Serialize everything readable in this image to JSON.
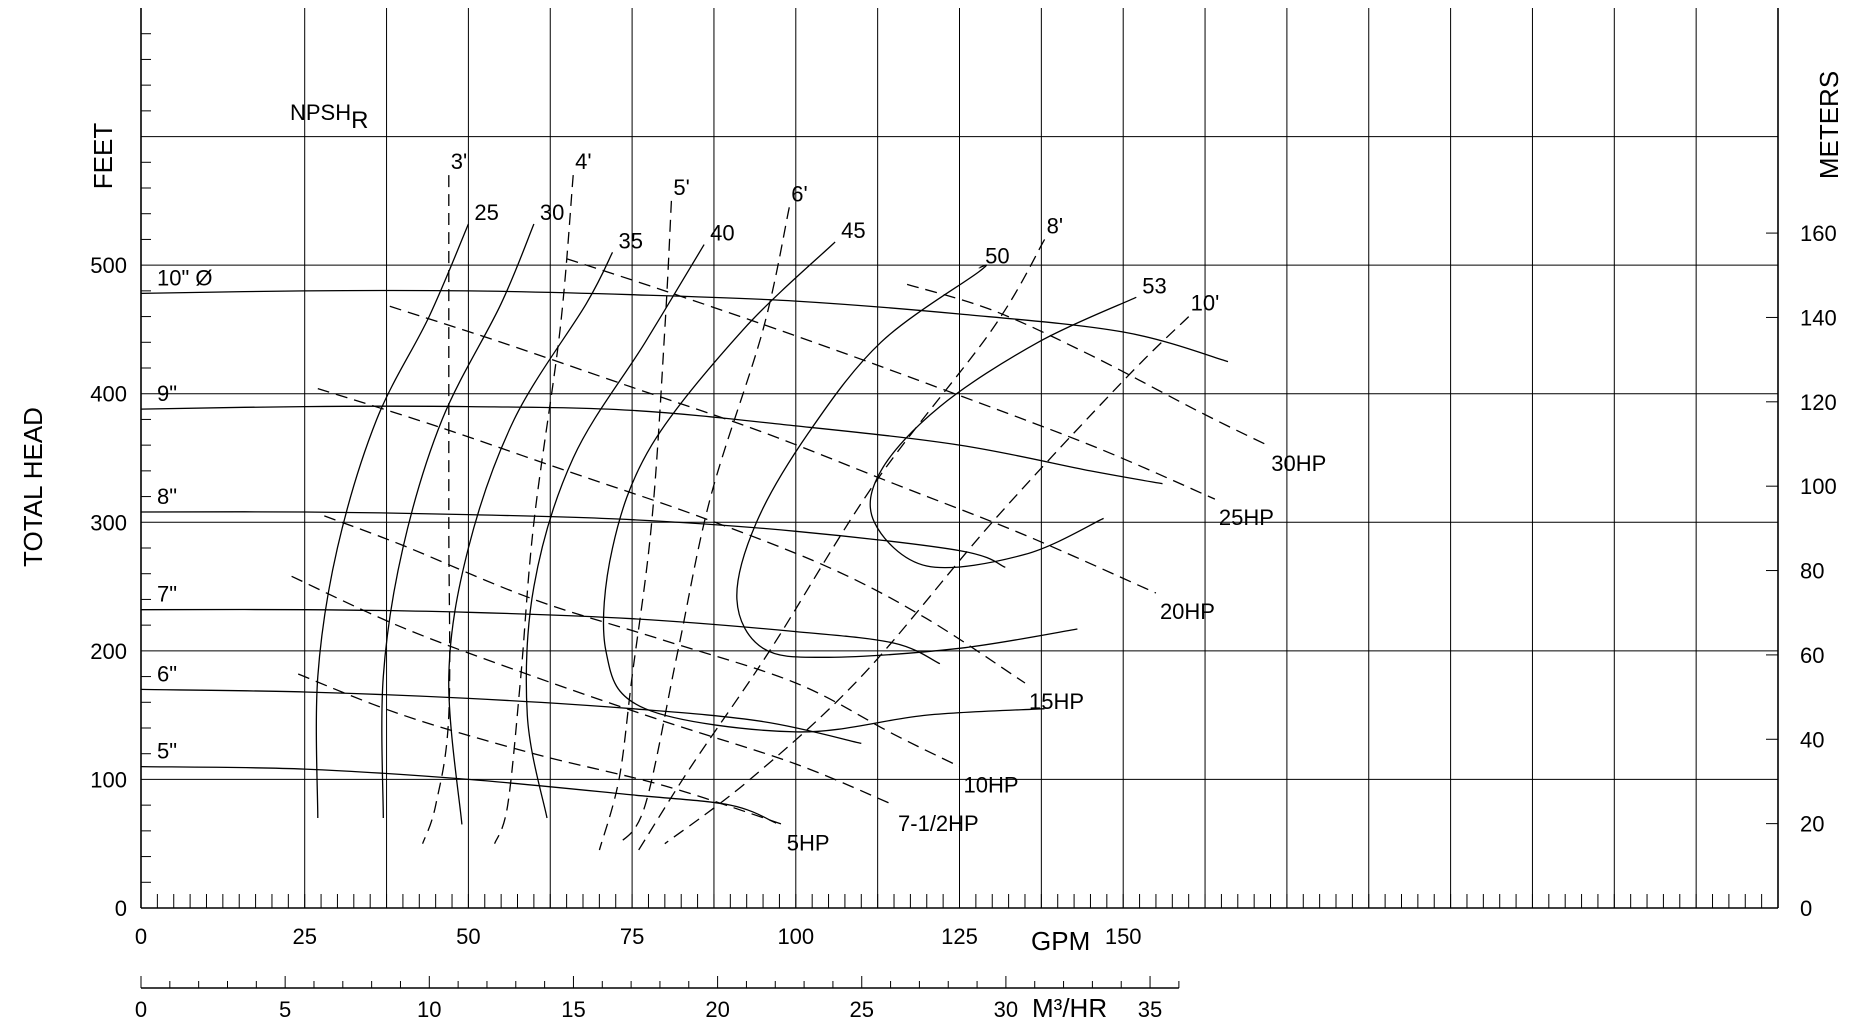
{
  "chart_data": {
    "type": "line",
    "title": "",
    "x": {
      "label": "GPM",
      "range": [
        0,
        250
      ],
      "ticks": [
        0,
        25,
        50,
        75,
        100,
        125,
        150
      ]
    },
    "x_metric": {
      "label": "M³/HR",
      "range": [
        0,
        36
      ],
      "ticks": [
        0,
        5,
        10,
        15,
        20,
        25,
        30,
        35
      ]
    },
    "y": {
      "label": "TOTAL HEAD",
      "unit_label": "FEET",
      "range": [
        0,
        700
      ],
      "ticks": [
        0,
        100,
        200,
        300,
        400,
        500
      ]
    },
    "y_metric": {
      "label": "METERS",
      "ticks": [
        0,
        20,
        40,
        60,
        80,
        100,
        120,
        140,
        160
      ]
    },
    "npsh_label": "NPSH",
    "npsh_sub": "R",
    "grid": true,
    "impeller_curves": [
      {
        "label": "10\" Ø",
        "points": [
          [
            0,
            478
          ],
          [
            25,
            480
          ],
          [
            50,
            480
          ],
          [
            75,
            477
          ],
          [
            100,
            472
          ],
          [
            125,
            462
          ],
          [
            150,
            448
          ],
          [
            166,
            425
          ]
        ]
      },
      {
        "label": "9\"",
        "points": [
          [
            0,
            388
          ],
          [
            25,
            390
          ],
          [
            50,
            390
          ],
          [
            75,
            387
          ],
          [
            100,
            375
          ],
          [
            125,
            360
          ],
          [
            145,
            340
          ],
          [
            156,
            330
          ]
        ]
      },
      {
        "label": "8\"",
        "points": [
          [
            0,
            308
          ],
          [
            25,
            308
          ],
          [
            50,
            306
          ],
          [
            75,
            302
          ],
          [
            100,
            293
          ],
          [
            125,
            278
          ],
          [
            132,
            265
          ]
        ]
      },
      {
        "label": "7\"",
        "points": [
          [
            0,
            232
          ],
          [
            25,
            232
          ],
          [
            50,
            230
          ],
          [
            75,
            225
          ],
          [
            100,
            215
          ],
          [
            115,
            206
          ],
          [
            122,
            190
          ]
        ]
      },
      {
        "label": "6\"",
        "points": [
          [
            0,
            170
          ],
          [
            25,
            168
          ],
          [
            50,
            163
          ],
          [
            75,
            155
          ],
          [
            95,
            145
          ],
          [
            110,
            128
          ]
        ]
      },
      {
        "label": "5\"",
        "points": [
          [
            0,
            110
          ],
          [
            25,
            108
          ],
          [
            50,
            100
          ],
          [
            75,
            88
          ],
          [
            90,
            80
          ],
          [
            97,
            66
          ]
        ]
      }
    ],
    "efficiency_curves": [
      {
        "label": "25",
        "points": [
          [
            27,
            70
          ],
          [
            27,
            180
          ],
          [
            30,
            280
          ],
          [
            36,
            380
          ],
          [
            44,
            460
          ],
          [
            50,
            532
          ]
        ]
      },
      {
        "label": "30",
        "points": [
          [
            37,
            70
          ],
          [
            37,
            180
          ],
          [
            40,
            280
          ],
          [
            46,
            380
          ],
          [
            55,
            470
          ],
          [
            60,
            532
          ]
        ]
      },
      {
        "label": "35",
        "points": [
          [
            49,
            65
          ],
          [
            47,
            180
          ],
          [
            50,
            280
          ],
          [
            57,
            380
          ],
          [
            68,
            470
          ],
          [
            72,
            510
          ]
        ]
      },
      {
        "label": "40",
        "points": [
          [
            62,
            70
          ],
          [
            59,
            150
          ],
          [
            60,
            250
          ],
          [
            66,
            350
          ],
          [
            77,
            440
          ],
          [
            86,
            516
          ]
        ]
      },
      {
        "label": "45",
        "points": [
          [
            138,
            155
          ],
          [
            120,
            150
          ],
          [
            100,
            137
          ],
          [
            77,
            155
          ],
          [
            71,
            200
          ],
          [
            72,
            280
          ],
          [
            78,
            360
          ],
          [
            92,
            450
          ],
          [
            106,
            518
          ]
        ]
      },
      {
        "label": "50",
        "points": [
          [
            143,
            217
          ],
          [
            125,
            202
          ],
          [
            105,
            195
          ],
          [
            95,
            202
          ],
          [
            91,
            240
          ],
          [
            94,
            300
          ],
          [
            102,
            370
          ],
          [
            113,
            440
          ],
          [
            128,
            495
          ],
          [
            128,
            498
          ]
        ]
      },
      {
        "label": "53",
        "points": [
          [
            147,
            303
          ],
          [
            135,
            275
          ],
          [
            120,
            266
          ],
          [
            112,
            300
          ],
          [
            113,
            340
          ],
          [
            122,
            390
          ],
          [
            137,
            440
          ],
          [
            152,
            475
          ]
        ]
      }
    ],
    "horsepower_curves": [
      {
        "label": "5HP",
        "points": [
          [
            24,
            182
          ],
          [
            40,
            150
          ],
          [
            60,
            120
          ],
          [
            80,
            95
          ],
          [
            98,
            65
          ]
        ]
      },
      {
        "label": "7-1/2HP",
        "points": [
          [
            23,
            258
          ],
          [
            40,
            218
          ],
          [
            60,
            180
          ],
          [
            80,
            145
          ],
          [
            100,
            112
          ],
          [
            115,
            80
          ]
        ]
      },
      {
        "label": "10HP",
        "points": [
          [
            28,
            305
          ],
          [
            40,
            282
          ],
          [
            60,
            240
          ],
          [
            80,
            208
          ],
          [
            100,
            175
          ],
          [
            115,
            135
          ],
          [
            125,
            110
          ]
        ]
      },
      {
        "label": "15HP",
        "points": [
          [
            27,
            404
          ],
          [
            45,
            375
          ],
          [
            65,
            340
          ],
          [
            85,
            305
          ],
          [
            105,
            265
          ],
          [
            120,
            225
          ],
          [
            135,
            175
          ]
        ]
      },
      {
        "label": "20HP",
        "points": [
          [
            38,
            468
          ],
          [
            55,
            440
          ],
          [
            75,
            405
          ],
          [
            95,
            370
          ],
          [
            115,
            330
          ],
          [
            135,
            290
          ],
          [
            155,
            245
          ]
        ]
      },
      {
        "label": "25HP",
        "points": [
          [
            65,
            505
          ],
          [
            80,
            480
          ],
          [
            100,
            445
          ],
          [
            120,
            408
          ],
          [
            145,
            360
          ],
          [
            164,
            318
          ]
        ]
      },
      {
        "label": "30HP",
        "points": [
          [
            117,
            485
          ],
          [
            130,
            465
          ],
          [
            145,
            430
          ],
          [
            162,
            385
          ],
          [
            172,
            360
          ]
        ]
      }
    ],
    "npsh_curves": [
      {
        "label": "3'",
        "points": [
          [
            47,
            570
          ],
          [
            47,
            450
          ],
          [
            47,
            300
          ],
          [
            47,
            150
          ],
          [
            45,
            80
          ],
          [
            43,
            50
          ]
        ]
      },
      {
        "label": "4'",
        "points": [
          [
            66,
            570
          ],
          [
            64,
            450
          ],
          [
            60,
            300
          ],
          [
            58,
            180
          ],
          [
            56,
            80
          ],
          [
            54,
            50
          ]
        ]
      },
      {
        "label": "5'",
        "points": [
          [
            81,
            550
          ],
          [
            80,
            450
          ],
          [
            78,
            300
          ],
          [
            75,
            180
          ],
          [
            73,
            100
          ],
          [
            70,
            45
          ]
        ]
      },
      {
        "label": "6'",
        "points": [
          [
            99,
            545
          ],
          [
            95,
            450
          ],
          [
            87,
            320
          ],
          [
            82,
            200
          ],
          [
            77,
            80
          ],
          [
            73,
            50
          ]
        ]
      },
      {
        "label": "8'",
        "points": [
          [
            138,
            520
          ],
          [
            130,
            450
          ],
          [
            112,
            330
          ],
          [
            96,
            200
          ],
          [
            84,
            110
          ],
          [
            76,
            45
          ]
        ]
      },
      {
        "label": "10'",
        "points": [
          [
            160,
            460
          ],
          [
            150,
            410
          ],
          [
            130,
            300
          ],
          [
            110,
            180
          ],
          [
            93,
            100
          ],
          [
            80,
            50
          ]
        ]
      }
    ]
  }
}
